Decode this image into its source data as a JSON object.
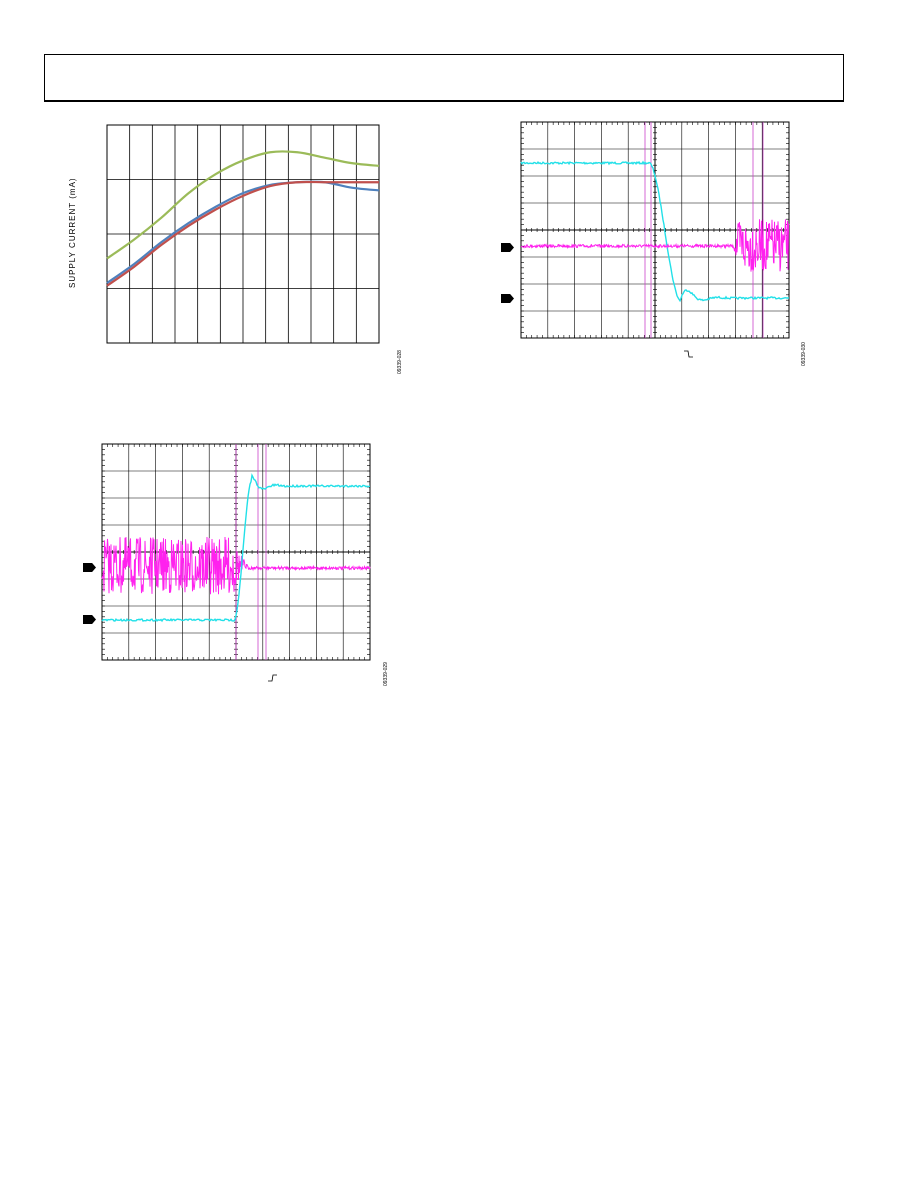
{
  "figures": {
    "supply_current": {
      "ylabel": "SUPPLY CURRENT (mA)",
      "fig_id": "09339-028"
    },
    "scope_power_down": {
      "fig_id": "09339-030"
    },
    "scope_power_up": {
      "fig_id": "09339-029"
    }
  },
  "chart_data": [
    {
      "type": "line",
      "title": "",
      "xlabel": "",
      "ylabel": "SUPPLY CURRENT (mA)",
      "grid": true,
      "x": [
        0,
        1,
        2,
        3,
        4,
        5,
        6,
        7,
        8,
        9,
        10
      ],
      "ylim": [
        0,
        4
      ],
      "series": [
        {
          "color": "#9bbb59",
          "values": [
            1.55,
            1.9,
            2.3,
            2.75,
            3.1,
            3.35,
            3.5,
            3.5,
            3.4,
            3.3,
            3.25
          ]
        },
        {
          "color": "#4f81bd",
          "values": [
            1.1,
            1.45,
            1.85,
            2.2,
            2.5,
            2.75,
            2.9,
            2.95,
            2.95,
            2.85,
            2.8
          ]
        },
        {
          "color": "#c0504d",
          "values": [
            1.05,
            1.4,
            1.8,
            2.15,
            2.45,
            2.7,
            2.88,
            2.95,
            2.95,
            2.95,
            2.95
          ]
        }
      ]
    }
  ]
}
